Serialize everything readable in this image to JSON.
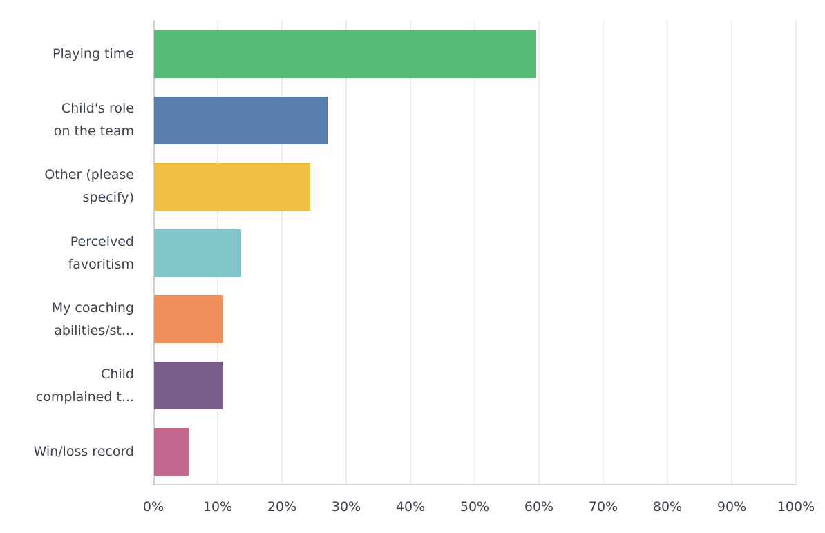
{
  "chart_data": {
    "type": "bar",
    "orientation": "horizontal",
    "title": "",
    "xlabel": "",
    "ylabel": "",
    "xlim": [
      0,
      100
    ],
    "grid": true,
    "legend": "none",
    "categories": [
      "Playing time",
      "Child's role on the team",
      "Other (please specify)",
      "Perceived favoritism",
      "My coaching abilities/st...",
      "Child complained t...",
      "Win/loss record"
    ],
    "category_label_lines": [
      [
        "Playing time"
      ],
      [
        "Child's role",
        "on the team"
      ],
      [
        "Other (please",
        "specify)"
      ],
      [
        "Perceived",
        "favoritism"
      ],
      [
        "My coaching",
        "abilities/st..."
      ],
      [
        "Child",
        "complained t..."
      ],
      [
        "Win/loss record"
      ]
    ],
    "values": [
      59.5,
      27.0,
      24.3,
      13.5,
      10.8,
      10.8,
      5.4
    ],
    "colors": [
      "#57bb76",
      "#5a7db0",
      "#f1c043",
      "#82c6c9",
      "#f0915c",
      "#775f89",
      "#c2688f"
    ],
    "x_ticks": [
      "0%",
      "10%",
      "20%",
      "30%",
      "40%",
      "50%",
      "60%",
      "70%",
      "80%",
      "90%",
      "100%"
    ]
  }
}
